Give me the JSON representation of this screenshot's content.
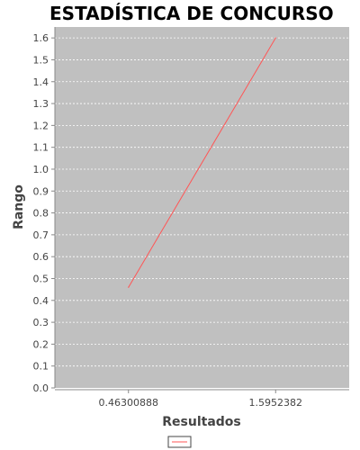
{
  "chart_data": {
    "type": "line",
    "title": "ESTADÍSTICA DE CONCURSO",
    "xlabel": "Resultados",
    "ylabel": "Rango",
    "categories": [
      "0.46300888",
      "1.5952382"
    ],
    "series": [
      {
        "values": [
          0.46,
          1.6
        ]
      }
    ],
    "ylim": [
      0,
      1.65
    ],
    "yticks": [
      "0.0",
      "0.1",
      "0.2",
      "0.3",
      "0.4",
      "0.5",
      "0.6",
      "0.7",
      "0.8",
      "0.9",
      "1.0",
      "1.1",
      "1.2",
      "1.3",
      "1.4",
      "1.5",
      "1.6"
    ],
    "grid": true,
    "legend_position": "bottom",
    "colors": {
      "plot_background": "#c0c0c0",
      "series": "#ff5555",
      "gridline": "#ffffff",
      "axis": "#888888"
    }
  }
}
